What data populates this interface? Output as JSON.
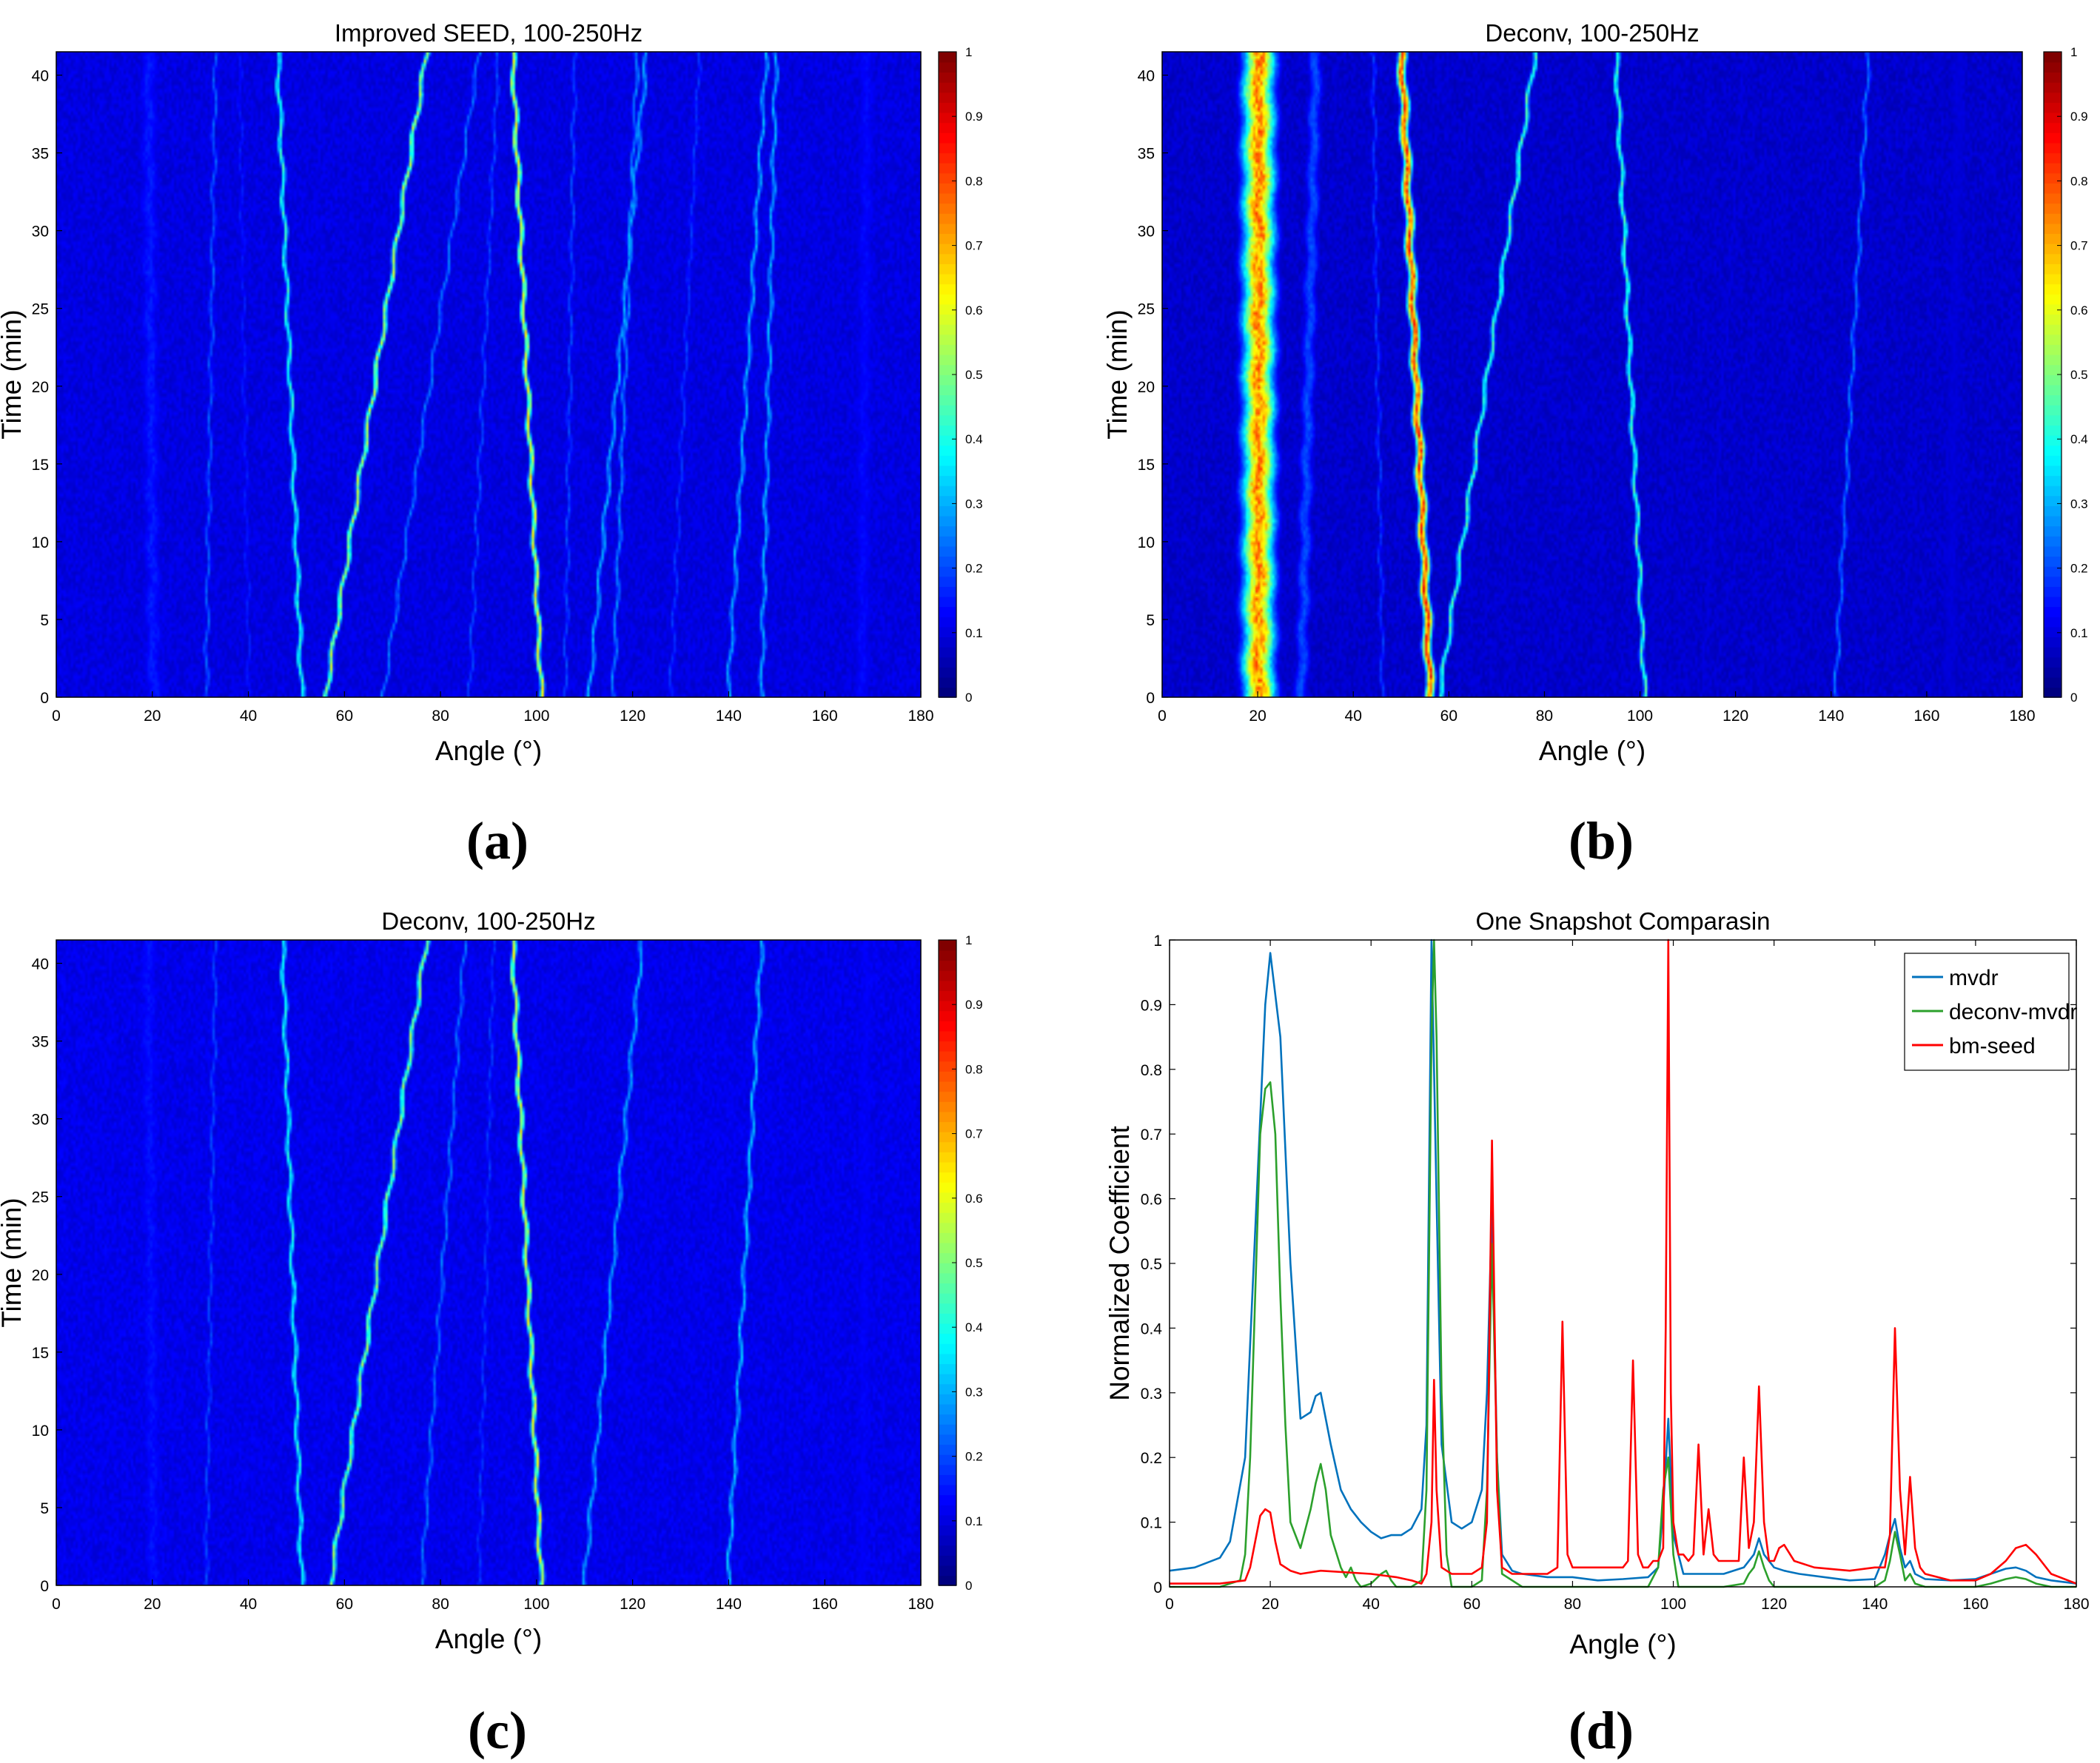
{
  "figure": {
    "colormap_name": "jet",
    "colors": {
      "background": "#ffffff",
      "axis": "#000000",
      "mvdr": "#0072BD",
      "deconv_mvdr": "#2ca02c",
      "bm_seed": "#ff0000",
      "jet_low": "#00008F",
      "jet_high": "#800000"
    }
  },
  "panels": [
    {
      "label": "(a)"
    },
    {
      "label": "(b)"
    },
    {
      "label": "(c)"
    },
    {
      "label": "(d)"
    }
  ],
  "chart_data": [
    {
      "type": "heatmap",
      "panel": "(a)",
      "title": "Improved SEED, 100-250Hz",
      "xlabel": "Angle (°)",
      "ylabel": "Time (min)",
      "xlim": [
        0,
        180
      ],
      "ylim": [
        0,
        41.5
      ],
      "xticks": [
        0,
        20,
        40,
        60,
        80,
        100,
        120,
        140,
        160,
        180
      ],
      "yticks": [
        0,
        5,
        10,
        15,
        20,
        25,
        30,
        35,
        40
      ],
      "colorbar": {
        "min": 0,
        "max": 1,
        "ticks": [
          0,
          0.1,
          0.2,
          0.3,
          0.4,
          0.5,
          0.6,
          0.7,
          0.8,
          0.9,
          1
        ]
      },
      "background_level": 0.07,
      "tracks": [
        {
          "angle_start": 101,
          "angle_end": 95,
          "intensity": 0.62,
          "width": 0.5
        },
        {
          "angle_start": 56,
          "angle_end": 77,
          "intensity": 0.55,
          "width": 0.5
        },
        {
          "angle_start": 51,
          "angle_end": 46,
          "intensity": 0.42,
          "width": 0.5
        },
        {
          "angle_start": 140,
          "angle_end": 148,
          "intensity": 0.3,
          "width": 0.5
        },
        {
          "angle_start": 147,
          "angle_end": 150,
          "intensity": 0.3,
          "width": 0.5
        },
        {
          "angle_start": 111,
          "angle_end": 123,
          "intensity": 0.3,
          "width": 0.5
        },
        {
          "angle_start": 116,
          "angle_end": 121,
          "intensity": 0.26,
          "width": 0.5
        },
        {
          "angle_start": 68,
          "angle_end": 88,
          "intensity": 0.24,
          "width": 0.5
        },
        {
          "angle_start": 31,
          "angle_end": 33,
          "intensity": 0.22,
          "width": 0.5
        },
        {
          "angle_start": 20,
          "angle_end": 19,
          "intensity": 0.15,
          "width": 2.5
        },
        {
          "angle_start": 168,
          "angle_end": 169,
          "intensity": 0.13,
          "width": 2.5
        },
        {
          "angle_start": 86,
          "angle_end": 92,
          "intensity": 0.2,
          "width": 0.5
        },
        {
          "angle_start": 128,
          "angle_end": 134,
          "intensity": 0.18,
          "width": 0.5
        },
        {
          "angle_start": 106,
          "angle_end": 108,
          "intensity": 0.2,
          "width": 0.5
        },
        {
          "angle_start": 40,
          "angle_end": 38,
          "intensity": 0.15,
          "width": 0.6
        }
      ]
    },
    {
      "type": "heatmap",
      "panel": "(b)",
      "title": "Deconv, 100-250Hz",
      "xlabel": "Angle (°)",
      "ylabel": "Time (min)",
      "xlim": [
        0,
        180
      ],
      "ylim": [
        0,
        41.5
      ],
      "xticks": [
        0,
        20,
        40,
        60,
        80,
        100,
        120,
        140,
        160,
        180
      ],
      "yticks": [
        0,
        5,
        10,
        15,
        20,
        25,
        30,
        35,
        40
      ],
      "colorbar": {
        "min": 0,
        "max": 1,
        "ticks": [
          0,
          0.1,
          0.2,
          0.3,
          0.4,
          0.5,
          0.6,
          0.7,
          0.8,
          0.9,
          1
        ]
      },
      "background_level": 0.05,
      "tracks": [
        {
          "angle_start": 20,
          "angle_end": 20,
          "intensity": 0.75,
          "width": 3.2
        },
        {
          "angle_start": 29,
          "angle_end": 32,
          "intensity": 0.2,
          "width": 1.6
        },
        {
          "angle_start": 56,
          "angle_end": 50,
          "intensity": 0.82,
          "width": 0.9
        },
        {
          "angle_start": 58,
          "angle_end": 78,
          "intensity": 0.45,
          "width": 0.5
        },
        {
          "angle_start": 101,
          "angle_end": 95,
          "intensity": 0.45,
          "width": 0.5
        },
        {
          "angle_start": 46,
          "angle_end": 44,
          "intensity": 0.18,
          "width": 0.5
        },
        {
          "angle_start": 141,
          "angle_end": 148,
          "intensity": 0.24,
          "width": 0.5
        },
        {
          "angle_start": 113,
          "angle_end": 122,
          "intensity": 0.1,
          "width": 0.6
        },
        {
          "angle_start": 165,
          "angle_end": 167,
          "intensity": 0.09,
          "width": 2.5
        }
      ]
    },
    {
      "type": "heatmap",
      "panel": "(c)",
      "title": "Deconv, 100-250Hz",
      "xlabel": "Angle (°)",
      "ylabel": "Time (min)",
      "xlim": [
        0,
        180
      ],
      "ylim": [
        0,
        41.5
      ],
      "xticks": [
        0,
        20,
        40,
        60,
        80,
        100,
        120,
        140,
        160,
        180
      ],
      "yticks": [
        0,
        5,
        10,
        15,
        20,
        25,
        30,
        35,
        40
      ],
      "colorbar": {
        "min": 0,
        "max": 1,
        "ticks": [
          0,
          0.1,
          0.2,
          0.3,
          0.4,
          0.5,
          0.6,
          0.7,
          0.8,
          0.9,
          1
        ]
      },
      "background_level": 0.08,
      "tracks": [
        {
          "angle_start": 101,
          "angle_end": 95,
          "intensity": 0.6,
          "width": 0.5
        },
        {
          "angle_start": 57,
          "angle_end": 77,
          "intensity": 0.52,
          "width": 0.5
        },
        {
          "angle_start": 51,
          "angle_end": 47,
          "intensity": 0.4,
          "width": 0.5
        },
        {
          "angle_start": 140,
          "angle_end": 147,
          "intensity": 0.32,
          "width": 0.5
        },
        {
          "angle_start": 110,
          "angle_end": 122,
          "intensity": 0.3,
          "width": 0.5
        },
        {
          "angle_start": 76,
          "angle_end": 85,
          "intensity": 0.24,
          "width": 0.5
        },
        {
          "angle_start": 31,
          "angle_end": 33,
          "intensity": 0.2,
          "width": 0.5
        },
        {
          "angle_start": 20,
          "angle_end": 19,
          "intensity": 0.14,
          "width": 2.5
        },
        {
          "angle_start": 168,
          "angle_end": 169,
          "intensity": 0.12,
          "width": 2.5
        },
        {
          "angle_start": 88,
          "angle_end": 91,
          "intensity": 0.18,
          "width": 0.5
        }
      ]
    },
    {
      "type": "line",
      "panel": "(d)",
      "title": "One Snapshot Comparasin",
      "xlabel": "Angle (°)",
      "ylabel": "Normalized Coefficient",
      "xlim": [
        0,
        180
      ],
      "ylim": [
        0,
        1
      ],
      "xticks": [
        0,
        20,
        40,
        60,
        80,
        100,
        120,
        140,
        160,
        180
      ],
      "yticks": [
        0,
        0.1,
        0.2,
        0.3,
        0.4,
        0.5,
        0.6,
        0.7,
        0.8,
        0.9,
        1
      ],
      "legend_position": "top-right",
      "series": [
        {
          "name": "mvdr",
          "color": "#0072BD",
          "x": [
            0,
            5,
            10,
            12,
            15,
            17,
            19,
            20,
            22,
            24,
            26,
            28,
            29,
            30,
            32,
            34,
            36,
            38,
            40,
            42,
            44,
            46,
            48,
            50,
            51,
            52,
            53,
            54,
            56,
            58,
            60,
            62,
            63,
            64,
            65,
            66,
            68,
            70,
            75,
            80,
            85,
            90,
            95,
            97,
            98,
            99,
            100,
            102,
            105,
            110,
            114,
            116,
            117,
            118,
            120,
            122,
            125,
            130,
            135,
            140,
            142,
            143,
            144,
            145,
            146,
            147,
            148,
            150,
            155,
            160,
            163,
            166,
            168,
            170,
            172,
            175,
            180
          ],
          "y": [
            0.025,
            0.03,
            0.045,
            0.07,
            0.2,
            0.55,
            0.9,
            0.98,
            0.85,
            0.5,
            0.26,
            0.27,
            0.295,
            0.3,
            0.22,
            0.15,
            0.12,
            0.1,
            0.085,
            0.075,
            0.08,
            0.08,
            0.09,
            0.12,
            0.25,
            1.0,
            0.6,
            0.22,
            0.1,
            0.09,
            0.1,
            0.15,
            0.3,
            0.59,
            0.2,
            0.05,
            0.025,
            0.02,
            0.015,
            0.015,
            0.01,
            0.012,
            0.015,
            0.03,
            0.12,
            0.26,
            0.08,
            0.02,
            0.02,
            0.02,
            0.03,
            0.05,
            0.075,
            0.05,
            0.03,
            0.025,
            0.02,
            0.015,
            0.01,
            0.012,
            0.05,
            0.08,
            0.105,
            0.06,
            0.03,
            0.04,
            0.02,
            0.012,
            0.01,
            0.012,
            0.02,
            0.028,
            0.03,
            0.025,
            0.015,
            0.01,
            0.005
          ]
        },
        {
          "name": "deconv-mvdr",
          "color": "#2ca02c",
          "x": [
            0,
            10,
            14,
            15,
            16,
            17,
            18,
            19,
            20,
            21,
            22,
            23,
            24,
            26,
            28,
            29,
            30,
            31,
            32,
            34,
            35,
            36,
            37,
            38,
            40,
            42,
            43,
            44,
            45,
            48,
            50,
            51,
            52,
            52.5,
            53,
            54,
            55,
            56,
            60,
            62,
            63,
            64,
            65,
            66,
            70,
            80,
            95,
            97,
            98,
            99,
            100,
            101,
            105,
            110,
            114,
            115,
            116,
            117,
            118,
            119,
            120,
            125,
            140,
            142,
            143,
            144,
            145,
            146,
            147,
            148,
            150,
            160,
            163,
            166,
            168,
            170,
            172,
            175,
            180
          ],
          "y": [
            0,
            0,
            0.01,
            0.05,
            0.2,
            0.45,
            0.7,
            0.77,
            0.78,
            0.7,
            0.45,
            0.25,
            0.1,
            0.06,
            0.12,
            0.16,
            0.19,
            0.15,
            0.08,
            0.03,
            0.015,
            0.03,
            0.01,
            0.0,
            0.005,
            0.02,
            0.025,
            0.01,
            0.0,
            0.0,
            0.01,
            0.15,
            0.85,
            1.0,
            0.85,
            0.3,
            0.05,
            0.0,
            0.0,
            0.01,
            0.15,
            0.53,
            0.2,
            0.02,
            0.0,
            0.0,
            0.0,
            0.03,
            0.15,
            0.2,
            0.05,
            0.0,
            0.0,
            0.0,
            0.005,
            0.02,
            0.03,
            0.055,
            0.03,
            0.01,
            0.0,
            0.0,
            0.0,
            0.01,
            0.04,
            0.085,
            0.05,
            0.01,
            0.02,
            0.005,
            0.0,
            0.0,
            0.005,
            0.012,
            0.015,
            0.012,
            0.005,
            0.0,
            0.0
          ]
        },
        {
          "name": "bm-seed",
          "color": "#ff0000",
          "x": [
            0,
            10,
            15,
            16,
            17,
            18,
            19,
            20,
            21,
            22,
            24,
            26,
            30,
            40,
            45,
            48,
            50,
            51,
            52,
            52.5,
            53,
            54,
            56,
            60,
            62,
            63,
            64,
            65,
            66,
            68,
            75,
            77,
            78,
            79,
            80,
            85,
            90,
            91,
            92,
            93,
            94,
            95,
            96,
            97,
            98,
            98.5,
            99,
            99.5,
            100,
            101,
            102,
            103,
            104,
            105,
            106,
            107,
            108,
            109,
            110,
            113,
            114,
            115,
            116,
            117,
            118,
            119,
            120,
            121,
            122,
            124,
            128,
            135,
            140,
            142,
            143,
            144,
            145,
            146,
            147,
            148,
            149,
            150,
            155,
            160,
            163,
            166,
            168,
            170,
            172,
            175,
            180
          ],
          "y": [
            0.005,
            0.005,
            0.01,
            0.03,
            0.07,
            0.11,
            0.12,
            0.115,
            0.07,
            0.035,
            0.025,
            0.02,
            0.025,
            0.02,
            0.015,
            0.01,
            0.005,
            0.02,
            0.1,
            0.32,
            0.15,
            0.03,
            0.02,
            0.02,
            0.03,
            0.1,
            0.69,
            0.15,
            0.03,
            0.02,
            0.02,
            0.03,
            0.41,
            0.05,
            0.03,
            0.03,
            0.03,
            0.04,
            0.35,
            0.05,
            0.03,
            0.03,
            0.04,
            0.04,
            0.06,
            0.4,
            1.0,
            0.3,
            0.1,
            0.05,
            0.05,
            0.04,
            0.05,
            0.22,
            0.05,
            0.12,
            0.05,
            0.04,
            0.04,
            0.04,
            0.2,
            0.06,
            0.1,
            0.31,
            0.1,
            0.04,
            0.04,
            0.06,
            0.065,
            0.04,
            0.03,
            0.025,
            0.03,
            0.03,
            0.08,
            0.4,
            0.15,
            0.05,
            0.17,
            0.06,
            0.03,
            0.02,
            0.01,
            0.01,
            0.02,
            0.04,
            0.06,
            0.065,
            0.05,
            0.02,
            0.005
          ]
        }
      ]
    }
  ]
}
